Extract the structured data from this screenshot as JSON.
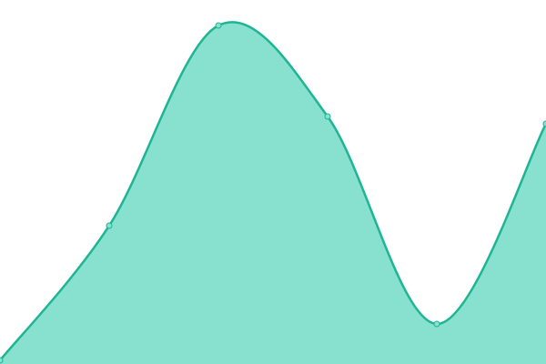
{
  "chart_data": {
    "type": "area",
    "categories": [
      null,
      null,
      null,
      null,
      null,
      null
    ],
    "values": [
      1,
      38,
      93,
      68,
      11,
      66
    ],
    "color": "#1db594",
    "fill": "#88e0ce",
    "ylim": [
      0,
      100
    ],
    "grid": false
  }
}
